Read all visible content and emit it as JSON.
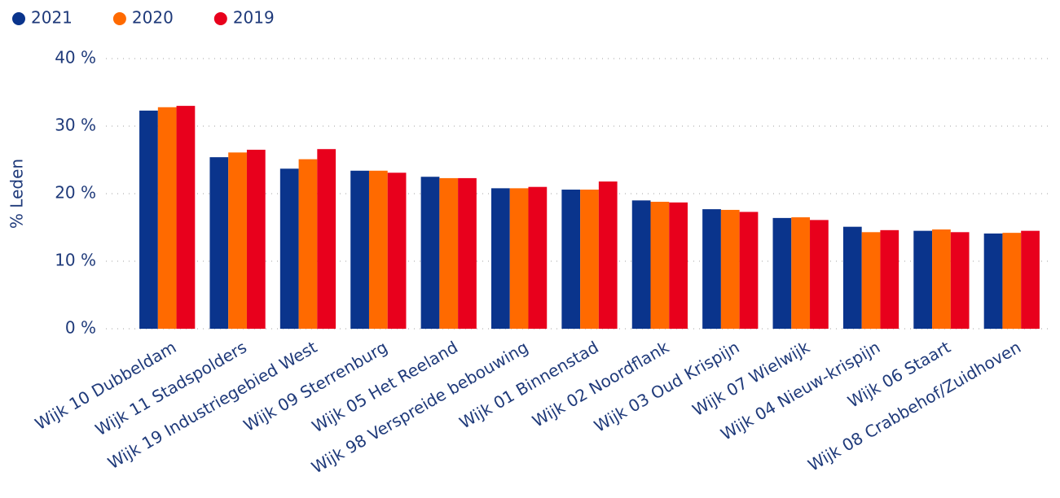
{
  "chart_data": {
    "type": "bar",
    "y_label": "% Leden",
    "legend": "top-left",
    "grid": true,
    "categories": [
      "Wijk 10 Dubbeldam",
      "Wijk 11 Stadspolders",
      "Wijk 19 Industriegebied West",
      "Wijk 09 Sterrenburg",
      "Wijk 05 Het Reeland",
      "Wijk 98 Verspreide bebouwing",
      "Wijk 01 Binnenstad",
      "Wijk 02 Noordflank",
      "Wijk 03 Oud Krispijn",
      "Wijk 07 Wielwijk",
      "Wijk 04 Nieuw-krispijn",
      "Wijk 06 Staart",
      "Wijk 08 Crabbehof/Zuidhoven"
    ],
    "series": [
      {
        "name": "2021",
        "color": "#0a348c",
        "values": [
          32.3,
          25.4,
          23.7,
          23.4,
          22.5,
          20.8,
          20.6,
          19.0,
          17.7,
          16.4,
          15.1,
          14.5,
          14.1
        ]
      },
      {
        "name": "2020",
        "color": "#ff6a00",
        "values": [
          32.8,
          26.1,
          25.1,
          23.4,
          22.3,
          20.8,
          20.6,
          18.8,
          17.6,
          16.5,
          14.3,
          14.7,
          14.2
        ]
      },
      {
        "name": "2019",
        "color": "#e8001c",
        "values": [
          33.0,
          26.5,
          26.6,
          23.1,
          22.3,
          21.0,
          21.8,
          18.7,
          17.3,
          16.1,
          14.6,
          14.3,
          14.5
        ]
      }
    ],
    "ylim": [
      0,
      40
    ],
    "yticks": [
      {
        "value": 0,
        "label": "0 %"
      },
      {
        "value": 10,
        "label": "10 %"
      },
      {
        "value": 20,
        "label": "20 %"
      },
      {
        "value": 30,
        "label": "30 %"
      },
      {
        "value": 40,
        "label": "40 %"
      }
    ]
  }
}
